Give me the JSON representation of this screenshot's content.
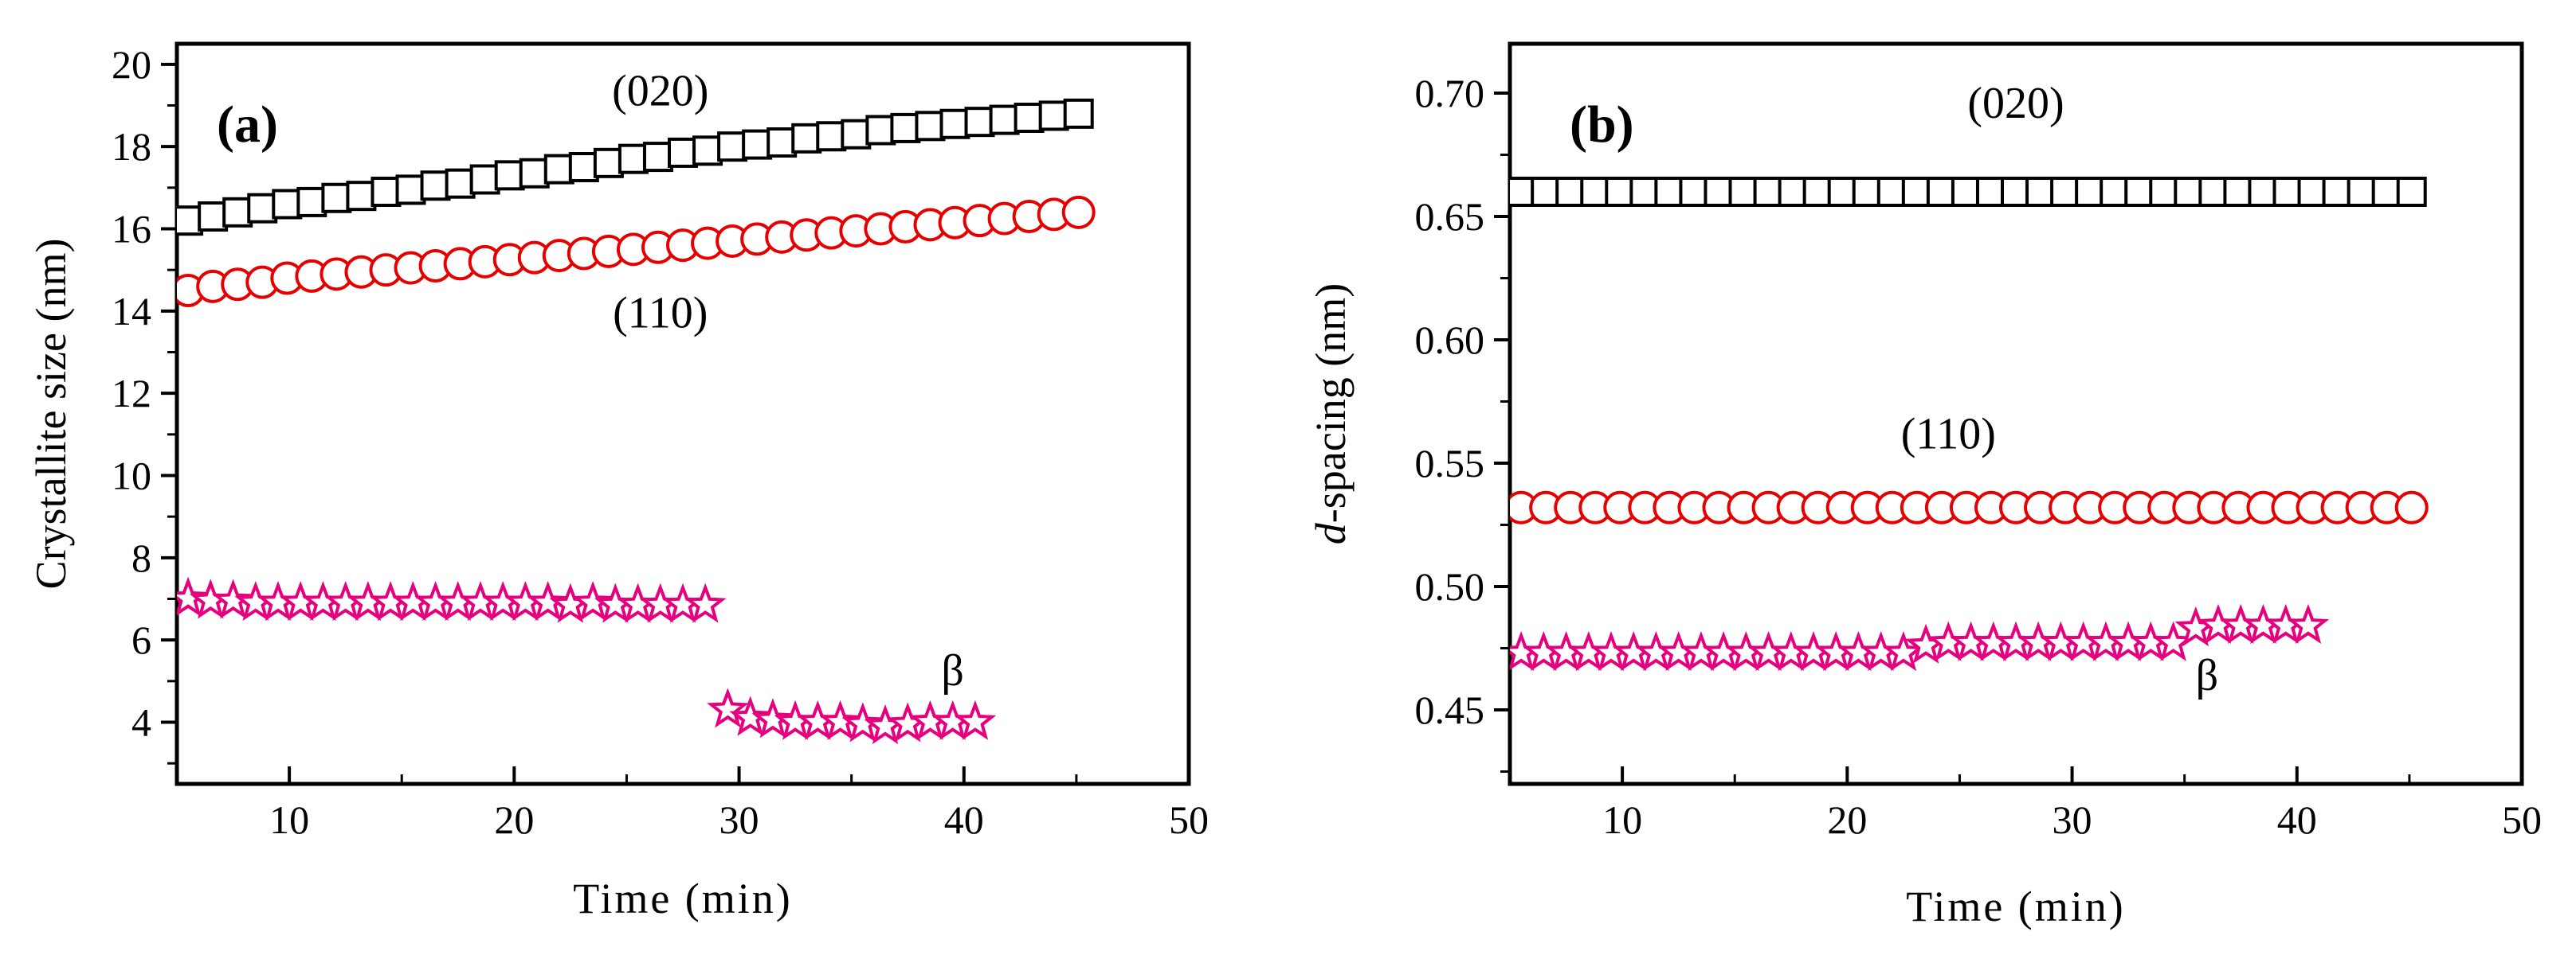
{
  "chart_data": [
    {
      "type": "scatter",
      "panel_label": "(a)",
      "xlabel": "Time (min)",
      "ylabel": "Crystallite size (nm)",
      "xlim": [
        5,
        50
      ],
      "ylim": [
        2.5,
        20.5
      ],
      "x_ticks": [
        10,
        20,
        30,
        40,
        50
      ],
      "y_ticks": [
        4,
        6,
        8,
        10,
        12,
        14,
        16,
        18,
        20
      ],
      "series": [
        {
          "name": "(020)",
          "marker": "square",
          "color": "#000000",
          "x": [
            5.5,
            6.6,
            7.7,
            8.8,
            9.9,
            11.0,
            12.1,
            13.2,
            14.3,
            15.4,
            16.5,
            17.6,
            18.7,
            19.8,
            20.9,
            22.0,
            23.1,
            24.2,
            25.3,
            26.4,
            27.5,
            28.6,
            29.7,
            30.8,
            31.9,
            33.0,
            34.1,
            35.2,
            36.3,
            37.4,
            38.5,
            39.6,
            40.7,
            41.8,
            42.9,
            44.0,
            45.1
          ],
          "y": [
            16.2,
            16.3,
            16.4,
            16.5,
            16.6,
            16.65,
            16.75,
            16.8,
            16.9,
            16.95,
            17.05,
            17.1,
            17.2,
            17.3,
            17.35,
            17.45,
            17.5,
            17.6,
            17.7,
            17.75,
            17.85,
            17.9,
            18.0,
            18.05,
            18.1,
            18.2,
            18.25,
            18.3,
            18.4,
            18.45,
            18.5,
            18.55,
            18.6,
            18.65,
            18.7,
            18.75,
            18.8
          ]
        },
        {
          "name": "(110)",
          "marker": "circle",
          "color": "#e60000",
          "x": [
            5.5,
            6.6,
            7.7,
            8.8,
            9.9,
            11.0,
            12.1,
            13.2,
            14.3,
            15.4,
            16.5,
            17.6,
            18.7,
            19.8,
            20.9,
            22.0,
            23.1,
            24.2,
            25.3,
            26.4,
            27.5,
            28.6,
            29.7,
            30.8,
            31.9,
            33.0,
            34.1,
            35.2,
            36.3,
            37.4,
            38.5,
            39.6,
            40.7,
            41.8,
            42.9,
            44.0,
            45.1
          ],
          "y": [
            14.5,
            14.6,
            14.65,
            14.7,
            14.8,
            14.85,
            14.9,
            14.95,
            15.0,
            15.05,
            15.1,
            15.15,
            15.2,
            15.25,
            15.3,
            15.35,
            15.4,
            15.45,
            15.5,
            15.55,
            15.6,
            15.65,
            15.7,
            15.75,
            15.8,
            15.85,
            15.9,
            15.95,
            16.0,
            16.05,
            16.1,
            16.15,
            16.2,
            16.25,
            16.3,
            16.35,
            16.4
          ]
        },
        {
          "name": "β",
          "marker": "star",
          "color": "#e6007e",
          "x": [
            5.5,
            6.5,
            7.5,
            8.5,
            9.5,
            10.5,
            11.5,
            12.5,
            13.5,
            14.5,
            15.5,
            16.5,
            17.5,
            18.5,
            19.5,
            20.5,
            21.5,
            22.5,
            23.5,
            24.5,
            25.5,
            26.5,
            27.5,
            28.5,
            29.5,
            30.5,
            31.5,
            32.5,
            33.5,
            34.5,
            35.5,
            36.5,
            37.5,
            38.5,
            39.5,
            40.5
          ],
          "y": [
            7.0,
            6.95,
            6.95,
            6.9,
            6.9,
            6.9,
            6.9,
            6.9,
            6.9,
            6.9,
            6.9,
            6.9,
            6.9,
            6.9,
            6.9,
            6.9,
            6.9,
            6.85,
            6.9,
            6.85,
            6.85,
            6.85,
            6.85,
            6.85,
            4.3,
            4.1,
            4.05,
            4.0,
            4.0,
            4.0,
            3.95,
            3.9,
            3.95,
            4.0,
            4.0,
            4.0
          ]
        }
      ],
      "annotations": [
        {
          "text": "(020)",
          "x": 26.5,
          "y": 19.0
        },
        {
          "text": "(110)",
          "x": 26.5,
          "y": 13.6
        },
        {
          "text": "β",
          "x": 39.5,
          "y": 4.9
        }
      ]
    },
    {
      "type": "scatter",
      "panel_label": "(b)",
      "xlabel": "Time (min)",
      "ylabel_prefix": "d",
      "ylabel": "-spacing (nm)",
      "xlim": [
        5,
        50
      ],
      "ylim": [
        0.42,
        0.72
      ],
      "x_ticks": [
        10,
        20,
        30,
        40,
        50
      ],
      "y_ticks": [
        0.45,
        0.5,
        0.55,
        0.6,
        0.65,
        0.7
      ],
      "y_tick_labels": [
        "0.45",
        "0.50",
        "0.55",
        "0.60",
        "0.65",
        "0.70"
      ],
      "series": [
        {
          "name": "(020)",
          "marker": "square",
          "color": "#000000",
          "x": [
            5.5,
            6.6,
            7.7,
            8.8,
            9.9,
            11.0,
            12.1,
            13.2,
            14.3,
            15.4,
            16.5,
            17.6,
            18.7,
            19.8,
            20.9,
            22.0,
            23.1,
            24.2,
            25.3,
            26.4,
            27.5,
            28.6,
            29.7,
            30.8,
            31.9,
            33.0,
            34.1,
            35.2,
            36.3,
            37.4,
            38.5,
            39.6,
            40.7,
            41.8,
            42.9,
            44.0,
            45.1
          ],
          "y": [
            0.66,
            0.66,
            0.66,
            0.66,
            0.66,
            0.66,
            0.66,
            0.66,
            0.66,
            0.66,
            0.66,
            0.66,
            0.66,
            0.66,
            0.66,
            0.66,
            0.66,
            0.66,
            0.66,
            0.66,
            0.66,
            0.66,
            0.66,
            0.66,
            0.66,
            0.66,
            0.66,
            0.66,
            0.66,
            0.66,
            0.66,
            0.66,
            0.66,
            0.66,
            0.66,
            0.66,
            0.66
          ]
        },
        {
          "name": "(110)",
          "marker": "circle",
          "color": "#e60000",
          "x": [
            5.5,
            6.6,
            7.7,
            8.8,
            9.9,
            11.0,
            12.1,
            13.2,
            14.3,
            15.4,
            16.5,
            17.6,
            18.7,
            19.8,
            20.9,
            22.0,
            23.1,
            24.2,
            25.3,
            26.4,
            27.5,
            28.6,
            29.7,
            30.8,
            31.9,
            33.0,
            34.1,
            35.2,
            36.3,
            37.4,
            38.5,
            39.6,
            40.7,
            41.8,
            42.9,
            44.0,
            45.1
          ],
          "y": [
            0.532,
            0.532,
            0.532,
            0.532,
            0.532,
            0.532,
            0.532,
            0.532,
            0.532,
            0.532,
            0.532,
            0.532,
            0.532,
            0.532,
            0.532,
            0.532,
            0.532,
            0.532,
            0.532,
            0.532,
            0.532,
            0.532,
            0.532,
            0.532,
            0.532,
            0.532,
            0.532,
            0.532,
            0.532,
            0.532,
            0.532,
            0.532,
            0.532,
            0.532,
            0.532,
            0.532,
            0.532
          ]
        },
        {
          "name": "β",
          "marker": "star",
          "color": "#e6007e",
          "x": [
            5.5,
            6.5,
            7.5,
            8.5,
            9.5,
            10.5,
            11.5,
            12.5,
            13.5,
            14.5,
            15.5,
            16.5,
            17.5,
            18.5,
            19.5,
            20.5,
            21.5,
            22.5,
            23.5,
            24.5,
            25.5,
            26.5,
            27.5,
            28.5,
            29.5,
            30.5,
            31.5,
            32.5,
            33.5,
            34.5,
            35.5,
            36.5,
            37.5,
            38.5,
            39.5,
            40.5
          ],
          "y": [
            0.473,
            0.473,
            0.473,
            0.473,
            0.473,
            0.473,
            0.473,
            0.473,
            0.473,
            0.473,
            0.473,
            0.473,
            0.473,
            0.473,
            0.473,
            0.473,
            0.473,
            0.473,
            0.476,
            0.477,
            0.477,
            0.477,
            0.477,
            0.477,
            0.477,
            0.477,
            0.477,
            0.477,
            0.477,
            0.477,
            0.483,
            0.484,
            0.484,
            0.484,
            0.484,
            0.484
          ]
        }
      ],
      "annotations": [
        {
          "text": "(020)",
          "x": 27.5,
          "y": 0.69
        },
        {
          "text": "(110)",
          "x": 24.5,
          "y": 0.556
        },
        {
          "text": "β",
          "x": 36.0,
          "y": 0.458
        }
      ]
    }
  ]
}
